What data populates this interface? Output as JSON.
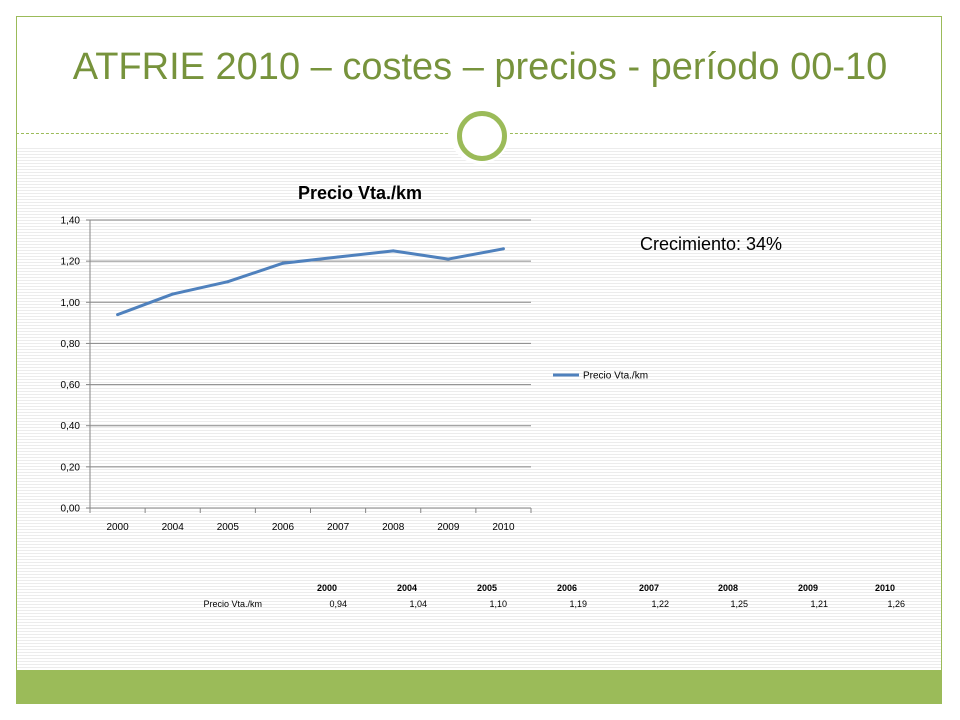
{
  "slide": {
    "title": "ATFRIE 2010 – costes – precios - período 00-10",
    "note": "Crecimiento: 34%"
  },
  "colors": {
    "accent": "#9bbb59",
    "title": "#77933c",
    "series": "#4f81bd"
  },
  "chart_data": {
    "type": "line",
    "title": "Precio Vta./km",
    "categories": [
      "2000",
      "2004",
      "2005",
      "2006",
      "2007",
      "2008",
      "2009",
      "2010"
    ],
    "series": [
      {
        "name": "Precio Vta./km",
        "values": [
          0.94,
          1.04,
          1.1,
          1.19,
          1.22,
          1.25,
          1.21,
          1.26
        ]
      }
    ],
    "y_ticks": [
      "0,00",
      "0,20",
      "0,40",
      "0,60",
      "0,80",
      "1,00",
      "1,20",
      "1,40"
    ],
    "ylim": [
      0,
      1.4
    ],
    "grid": true,
    "legend": "right",
    "data_table": {
      "header": [
        "2000",
        "2004",
        "2005",
        "2006",
        "2007",
        "2008",
        "2009",
        "2010"
      ],
      "row_label": "Precio Vta./km",
      "row_values": [
        "0,94",
        "1,04",
        "1,10",
        "1,19",
        "1,22",
        "1,25",
        "1,21",
        "1,26"
      ]
    }
  }
}
